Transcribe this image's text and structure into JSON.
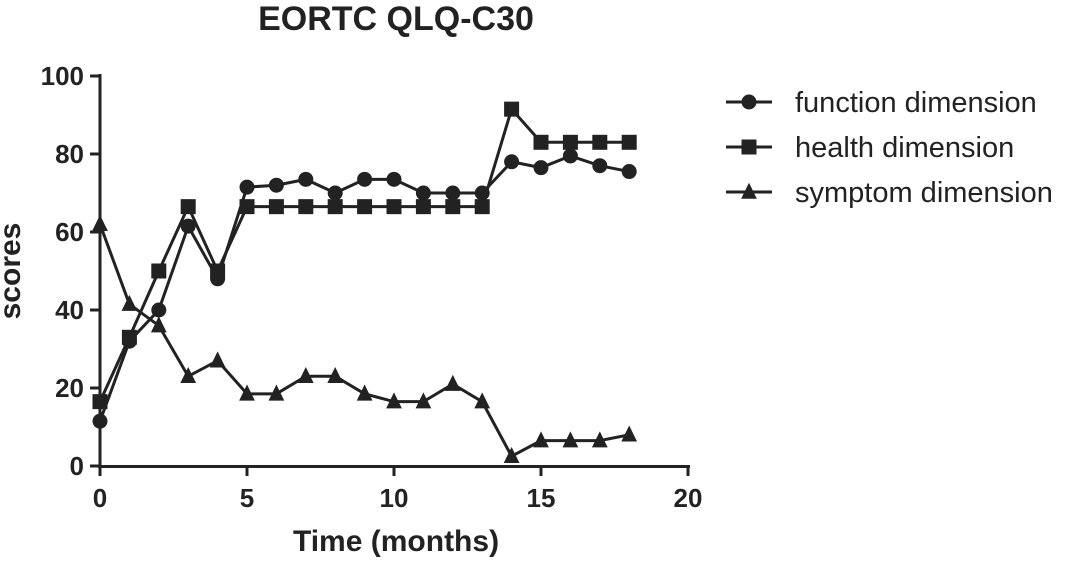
{
  "chart_data": {
    "type": "line",
    "title": "EORTC QLQ-C30",
    "xlabel": "Time (months)",
    "ylabel": "scores",
    "xlim": [
      0,
      20
    ],
    "ylim": [
      0,
      100
    ],
    "xticks": [
      0,
      5,
      10,
      15,
      20
    ],
    "yticks": [
      0,
      20,
      40,
      60,
      80,
      100
    ],
    "grid": false,
    "legend_position": "top-right",
    "x": [
      0,
      1,
      2,
      3,
      4,
      5,
      6,
      7,
      8,
      9,
      10,
      11,
      12,
      13,
      14,
      15,
      16,
      17,
      18
    ],
    "series": [
      {
        "name": "function dimension",
        "marker": "circle",
        "values": [
          11.5,
          32,
          40,
          61.5,
          48,
          71.5,
          72,
          73.5,
          70,
          73.5,
          73.5,
          70,
          70,
          70,
          78,
          76.5,
          79.5,
          77,
          75.5
        ]
      },
      {
        "name": "health dimension",
        "marker": "square",
        "values": [
          16.5,
          33,
          50,
          66.5,
          50,
          66.5,
          66.5,
          66.5,
          66.5,
          66.5,
          66.5,
          66.5,
          66.5,
          66.5,
          91.5,
          83,
          83,
          83,
          83
        ]
      },
      {
        "name": "symptom dimension",
        "marker": "triangle",
        "values": [
          62,
          41.5,
          36,
          23,
          27,
          18.5,
          18.5,
          23,
          23,
          18.5,
          16.5,
          16.5,
          21,
          16.5,
          2.5,
          6.5,
          6.5,
          6.5,
          8
        ]
      }
    ]
  },
  "colors": {
    "ink": "#222222",
    "background": "#ffffff"
  }
}
